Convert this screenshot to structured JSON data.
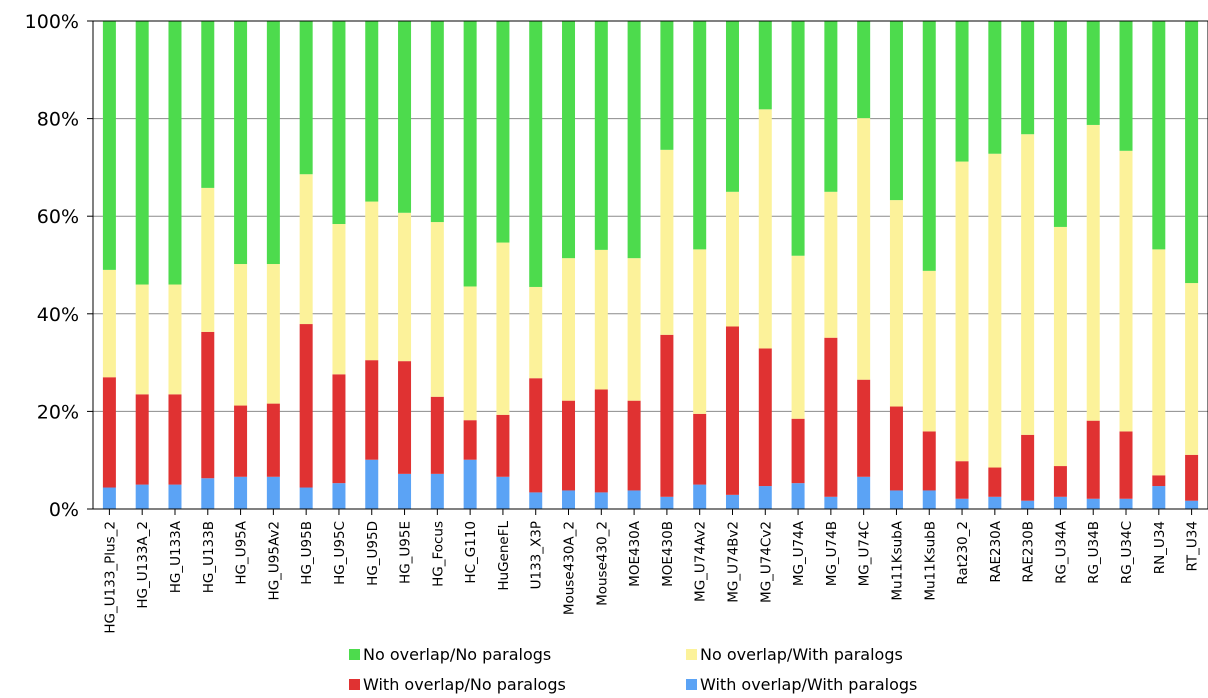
{
  "chart_data": {
    "type": "bar",
    "stacked": "percent",
    "y_ticks": [
      "0%",
      "20%",
      "40%",
      "60%",
      "80%",
      "100%"
    ],
    "ylim": [
      0,
      100
    ],
    "grid": "horizontal",
    "legend_position": "bottom",
    "categories": [
      "HG_U133_Plus_2",
      "HG_U133A_2",
      "HG_U133A",
      "HG_U133B",
      "HG_U95A",
      "HG_U95Av2",
      "HG_U95B",
      "HG_U95C",
      "HG_U95D",
      "HG_U95E",
      "HG_Focus",
      "HC_G110",
      "HuGeneFL",
      "U133_X3P",
      "Mouse430A_2",
      "Mouse430_2",
      "MOE430A",
      "MOE430B",
      "MG_U74Av2",
      "MG_U74Bv2",
      "MG_U74Cv2",
      "MG_U74A",
      "MG_U74B",
      "MG_U74C",
      "Mu11KsubA",
      "Mu11KsubB",
      "Rat230_2",
      "RAE230A",
      "RAE230B",
      "RG_U34A",
      "RG_U34B",
      "RG_U34C",
      "RN_U34",
      "RT_U34"
    ],
    "series": [
      {
        "name": "With overlap/With paralogs",
        "color": "#5ba3f5",
        "values": [
          4.4,
          5.0,
          5.0,
          6.3,
          6.6,
          6.6,
          4.4,
          5.3,
          10.1,
          7.2,
          7.2,
          10.1,
          6.6,
          3.4,
          3.8,
          3.4,
          3.8,
          2.5,
          5.0,
          2.9,
          4.7,
          5.3,
          2.5,
          6.6,
          3.8,
          3.8,
          2.1,
          2.5,
          1.7,
          2.5,
          2.1,
          2.1,
          4.7,
          1.7
        ]
      },
      {
        "name": "With overlap/No paralogs",
        "color": "#e03232",
        "values": [
          22.6,
          18.5,
          18.5,
          30.0,
          14.6,
          15.0,
          33.5,
          22.3,
          20.4,
          23.1,
          15.8,
          8.1,
          12.7,
          23.4,
          18.4,
          21.1,
          18.4,
          33.2,
          14.5,
          34.5,
          28.2,
          13.2,
          32.6,
          19.9,
          17.2,
          12.1,
          7.7,
          6.0,
          13.5,
          6.3,
          16.0,
          13.8,
          2.2,
          9.4
        ]
      },
      {
        "name": "No overlap/With paralogs",
        "color": "#fcf29a",
        "values": [
          22.0,
          22.5,
          22.5,
          29.5,
          29.0,
          28.6,
          30.7,
          30.8,
          32.5,
          30.4,
          35.8,
          27.4,
          35.3,
          18.7,
          29.2,
          28.6,
          29.2,
          37.9,
          33.7,
          27.6,
          49.0,
          33.4,
          29.9,
          53.6,
          42.3,
          32.9,
          61.4,
          64.3,
          61.6,
          49.0,
          60.6,
          57.5,
          46.3,
          35.2
        ]
      },
      {
        "name": "No overlap/No paralogs",
        "color": "#4ddb4d",
        "values": [
          51.0,
          54.0,
          54.0,
          34.2,
          49.8,
          49.8,
          31.4,
          41.6,
          37.0,
          39.3,
          41.2,
          54.4,
          45.4,
          54.5,
          48.6,
          46.9,
          48.6,
          26.4,
          46.8,
          35.0,
          18.1,
          48.1,
          35.0,
          19.9,
          36.7,
          51.2,
          28.8,
          27.2,
          23.2,
          42.2,
          21.3,
          26.6,
          46.8,
          53.7
        ]
      }
    ],
    "legend_order": [
      "No overlap/No paralogs",
      "No overlap/With paralogs",
      "With overlap/No paralogs",
      "With overlap/With paralogs"
    ]
  }
}
